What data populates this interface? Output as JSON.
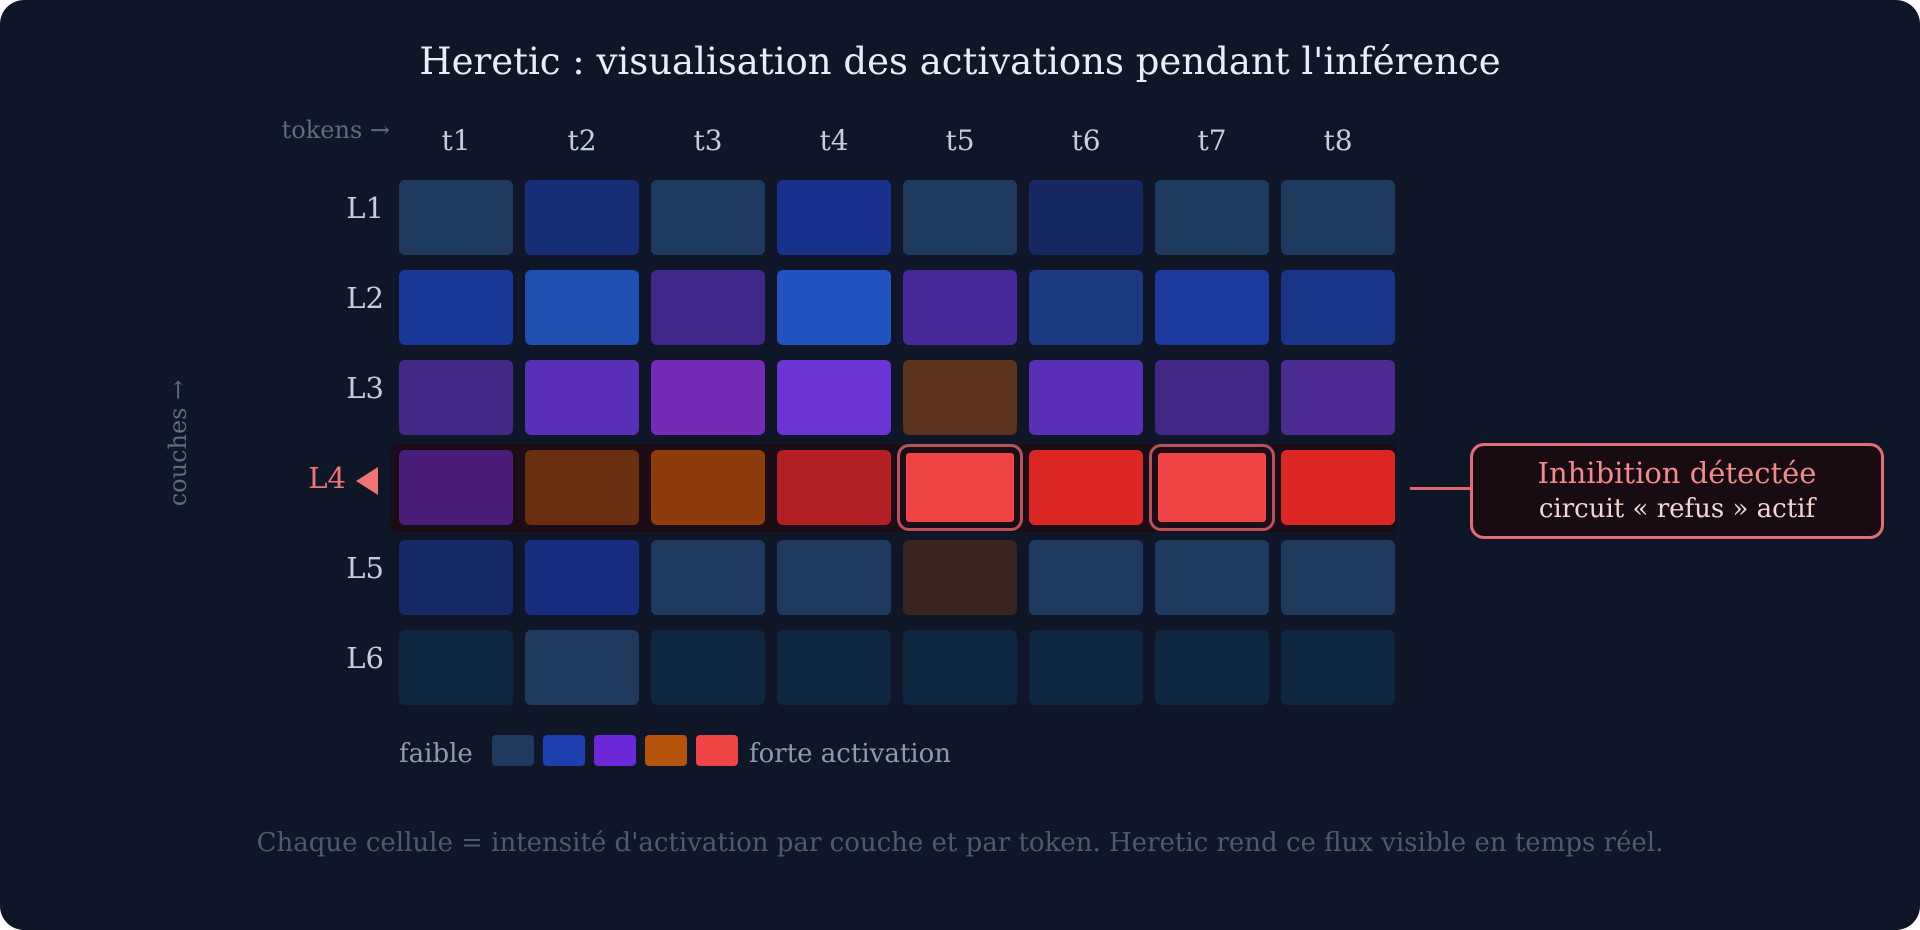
{
  "title": "Heretic : visualisation des activations pendant l'inférence",
  "axis_x_label": "tokens →",
  "axis_y_label": "couches →",
  "columns": [
    "t1",
    "t2",
    "t3",
    "t4",
    "t5",
    "t6",
    "t7",
    "t8"
  ],
  "rows": [
    {
      "label": "L1",
      "cells": [
        "#1e3a5f",
        "#162d78",
        "#1e3a5f",
        "#17318c",
        "#1e3a5f",
        "#15285f",
        "#1e3a5f",
        "#1e3a5f"
      ]
    },
    {
      "label": "L2",
      "cells": [
        "#173898",
        "#1f4fb3",
        "#412788",
        "#2153c2",
        "#46289a",
        "#1c3a82",
        "#1a3a9e",
        "#193588"
      ]
    },
    {
      "label": "L3",
      "cells": [
        "#432888",
        "#5a2fb8",
        "#732bb8",
        "#6b34d4",
        "#5c321c",
        "#5a2fb8",
        "#432888",
        "#4b2a91"
      ]
    },
    {
      "label": "L4",
      "cells": [
        "#4a1d7a",
        "#6a2f10",
        "#8f3c0d",
        "#b21f24",
        "#ef4444",
        "#dc2626",
        "#ef4444",
        "#dc2626"
      ],
      "highlight": true
    },
    {
      "label": "L5",
      "cells": [
        "#142965",
        "#172d7e",
        "#1e3a5f",
        "#1e3a5f",
        "#3a2420",
        "#1e3a5f",
        "#1e3a5f",
        "#1e3a5f"
      ]
    },
    {
      "label": "L6",
      "cells": [
        "#0f2640",
        "#1e3a5f",
        "#0f2640",
        "#0f2640",
        "#0f2640",
        "#0f2640",
        "#0f2640",
        "#0f2640"
      ]
    }
  ],
  "flagged_cells": [
    [
      3,
      4
    ],
    [
      3,
      6
    ]
  ],
  "callout": {
    "title": "Inhibition détectée",
    "subtitle": "circuit « refus » actif"
  },
  "legend": {
    "low_label": "faible",
    "high_label": "forte activation",
    "swatches": [
      "#1e3a5f",
      "#1e40af",
      "#6d28d9",
      "#b45309",
      "#ef4444"
    ]
  },
  "caption": "Chaque cellule = intensité d'activation par couche et par token. Heretic rend ce flux visible en temps réel."
}
